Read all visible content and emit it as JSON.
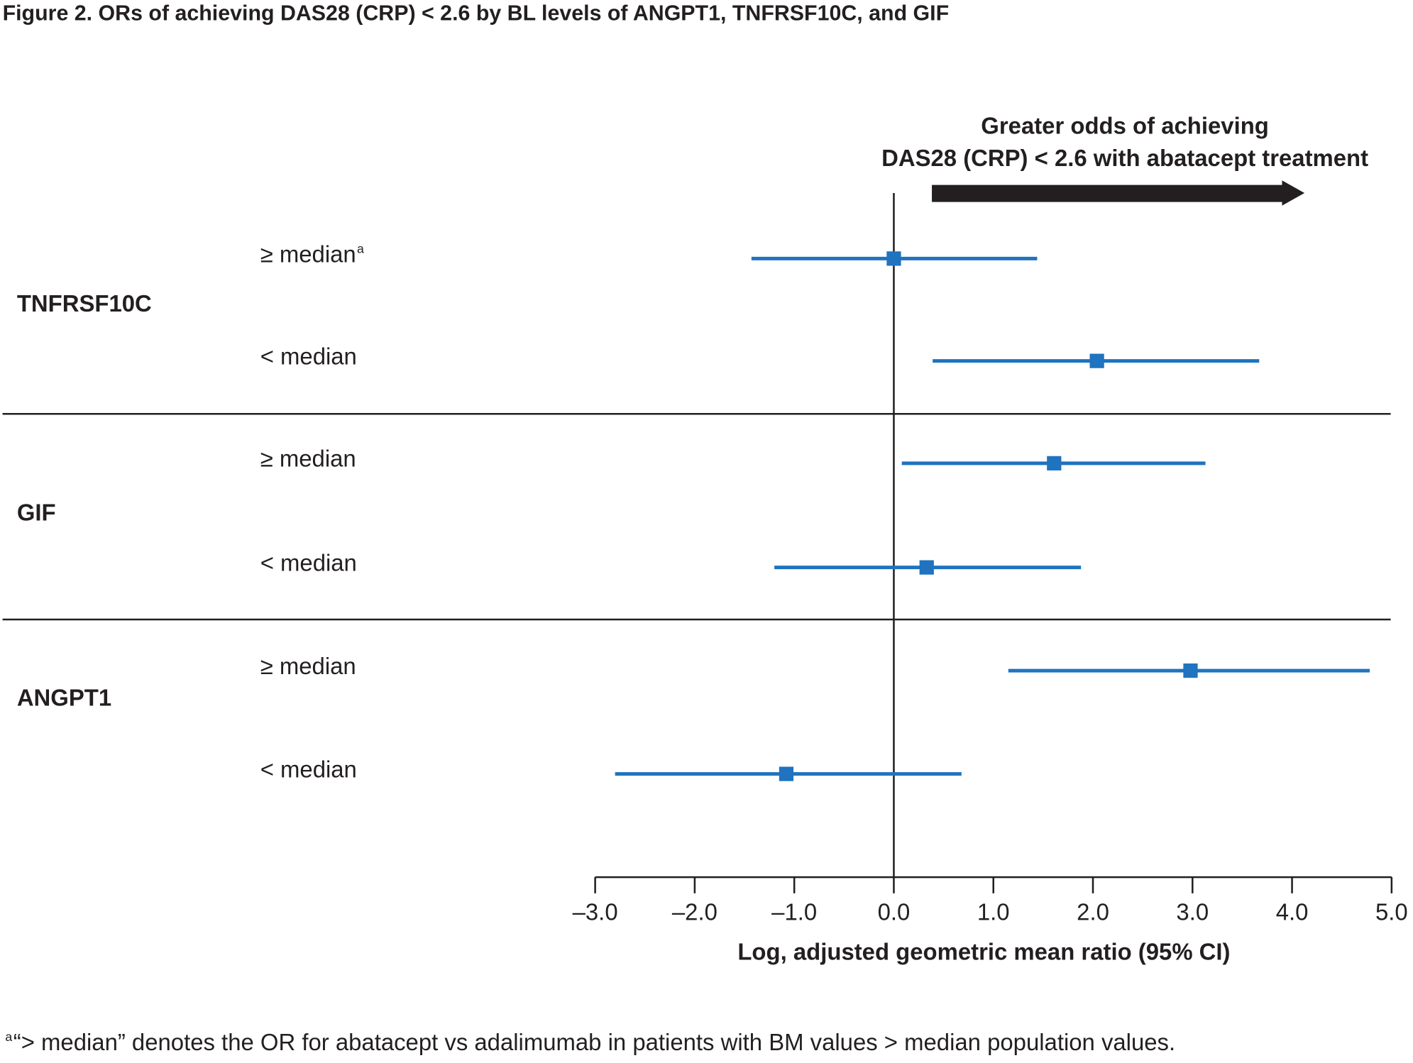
{
  "chart_data": {
    "type": "forest",
    "title": "Figure 2. ORs of achieving DAS28 (CRP) < 2.6 by BL levels of ANGPT1, TNFRSF10C, and GIF",
    "annotation": [
      "Greater odds of achieving",
      "DAS28 (CRP) < 2.6 with abatacept treatment"
    ],
    "xlabel": "Log, adjusted geometric mean ratio (95% CI)",
    "color": "#1f73bf",
    "reference_line": 0,
    "xlim": [
      -3,
      5
    ],
    "xticks": [
      {
        "value": -3,
        "label": "–3.0"
      },
      {
        "value": -2,
        "label": "–2.0"
      },
      {
        "value": -1,
        "label": "–1.0"
      },
      {
        "value": 0,
        "label": "0.0"
      },
      {
        "value": 1,
        "label": "1.0"
      },
      {
        "value": 2,
        "label": "2.0"
      },
      {
        "value": 3,
        "label": "3.0"
      },
      {
        "value": 4,
        "label": "4.0"
      },
      {
        "value": 5,
        "label": "5.0"
      }
    ],
    "groups": [
      {
        "name": "TNFRSF10C",
        "rows": [
          {
            "label": "≥ median",
            "label_marker": "a",
            "estimate": 0.0,
            "lower": -1.43,
            "upper": 1.44
          },
          {
            "label": "< median",
            "estimate": 2.04,
            "lower": 0.39,
            "upper": 3.67
          }
        ]
      },
      {
        "name": "GIF",
        "rows": [
          {
            "label": "≥ median",
            "estimate": 1.61,
            "lower": 0.08,
            "upper": 3.13
          },
          {
            "label": "< median",
            "estimate": 0.33,
            "lower": -1.2,
            "upper": 1.88
          }
        ]
      },
      {
        "name": "ANGPT1",
        "rows": [
          {
            "label": "≥ median",
            "estimate": 2.98,
            "lower": 1.15,
            "upper": 4.78
          },
          {
            "label": "< median",
            "estimate": -1.08,
            "lower": -2.8,
            "upper": 0.68
          }
        ]
      }
    ],
    "footnote_marker": "a",
    "footnote": "“> median” denotes the OR for abatacept vs adalimumab in patients with BM values > median population values."
  }
}
